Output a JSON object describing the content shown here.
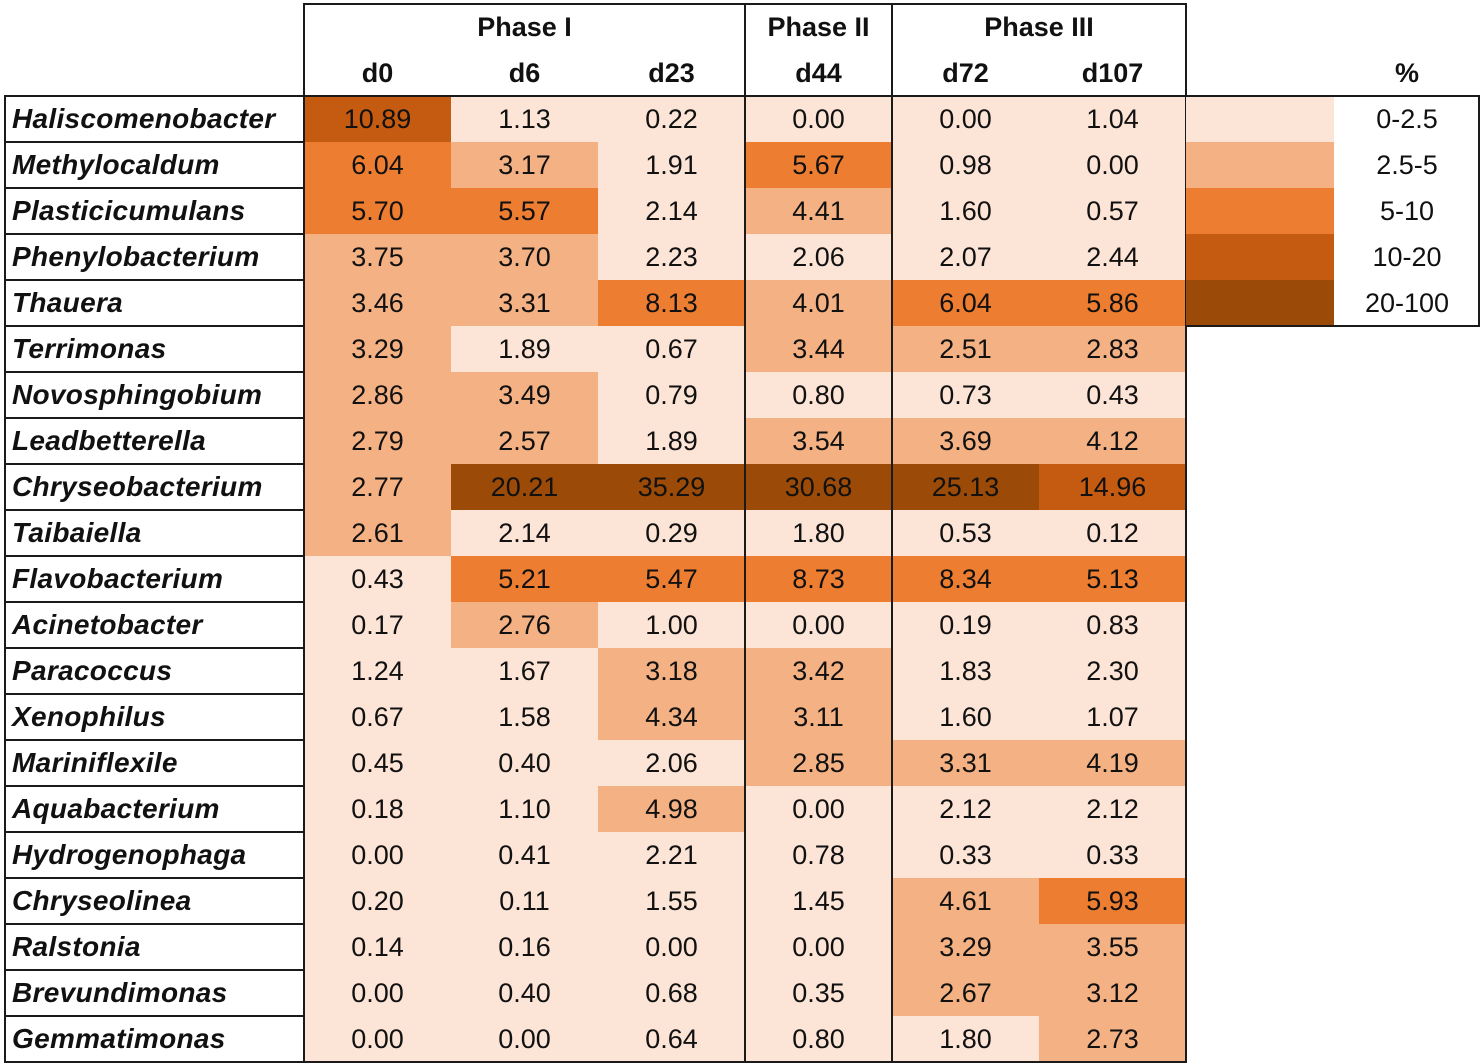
{
  "chart_data": {
    "type": "heatmap",
    "phases": [
      {
        "label": "Phase I",
        "columns": [
          "d0",
          "d6",
          "d23"
        ]
      },
      {
        "label": "Phase II",
        "columns": [
          "d44"
        ]
      },
      {
        "label": "Phase III",
        "columns": [
          "d72",
          "d107"
        ]
      }
    ],
    "columns": [
      "d0",
      "d6",
      "d23",
      "d44",
      "d72",
      "d107"
    ],
    "rows": [
      {
        "name": "Haliscomenobacter",
        "values": [
          "10.89",
          "1.13",
          "0.22",
          "0.00",
          "0.00",
          "1.04"
        ]
      },
      {
        "name": "Methylocaldum",
        "values": [
          "6.04",
          "3.17",
          "1.91",
          "5.67",
          "0.98",
          "0.00"
        ]
      },
      {
        "name": "Plasticicumulans",
        "values": [
          "5.70",
          "5.57",
          "2.14",
          "4.41",
          "1.60",
          "0.57"
        ]
      },
      {
        "name": "Phenylobacterium",
        "values": [
          "3.75",
          "3.70",
          "2.23",
          "2.06",
          "2.07",
          "2.44"
        ]
      },
      {
        "name": "Thauera",
        "values": [
          "3.46",
          "3.31",
          "8.13",
          "4.01",
          "6.04",
          "5.86"
        ]
      },
      {
        "name": "Terrimonas",
        "values": [
          "3.29",
          "1.89",
          "0.67",
          "3.44",
          "2.51",
          "2.83"
        ]
      },
      {
        "name": "Novosphingobium",
        "values": [
          "2.86",
          "3.49",
          "0.79",
          "0.80",
          "0.73",
          "0.43"
        ]
      },
      {
        "name": "Leadbetterella",
        "values": [
          "2.79",
          "2.57",
          "1.89",
          "3.54",
          "3.69",
          "4.12"
        ]
      },
      {
        "name": "Chryseobacterium",
        "values": [
          "2.77",
          "20.21",
          "35.29",
          "30.68",
          "25.13",
          "14.96"
        ]
      },
      {
        "name": "Taibaiella",
        "values": [
          "2.61",
          "2.14",
          "0.29",
          "1.80",
          "0.53",
          "0.12"
        ]
      },
      {
        "name": "Flavobacterium",
        "values": [
          "0.43",
          "5.21",
          "5.47",
          "8.73",
          "8.34",
          "5.13"
        ]
      },
      {
        "name": "Acinetobacter",
        "values": [
          "0.17",
          "2.76",
          "1.00",
          "0.00",
          "0.19",
          "0.83"
        ]
      },
      {
        "name": "Paracoccus",
        "values": [
          "1.24",
          "1.67",
          "3.18",
          "3.42",
          "1.83",
          "2.30"
        ]
      },
      {
        "name": "Xenophilus",
        "values": [
          "0.67",
          "1.58",
          "4.34",
          "3.11",
          "1.60",
          "1.07"
        ]
      },
      {
        "name": "Mariniflexile",
        "values": [
          "0.45",
          "0.40",
          "2.06",
          "2.85",
          "3.31",
          "4.19"
        ]
      },
      {
        "name": "Aquabacterium",
        "values": [
          "0.18",
          "1.10",
          "4.98",
          "0.00",
          "2.12",
          "2.12"
        ]
      },
      {
        "name": "Hydrogenophaga",
        "values": [
          "0.00",
          "0.41",
          "2.21",
          "0.78",
          "0.33",
          "0.33"
        ]
      },
      {
        "name": "Chryseolinea",
        "values": [
          "0.20",
          "0.11",
          "1.55",
          "1.45",
          "4.61",
          "5.93"
        ]
      },
      {
        "name": "Ralstonia",
        "values": [
          "0.14",
          "0.16",
          "0.00",
          "0.00",
          "3.29",
          "3.55"
        ]
      },
      {
        "name": "Brevundimonas",
        "values": [
          "0.00",
          "0.40",
          "0.68",
          "0.35",
          "2.67",
          "3.12"
        ]
      },
      {
        "name": "Gemmatimonas",
        "values": [
          "0.00",
          "0.00",
          "0.64",
          "0.80",
          "1.80",
          "2.73"
        ]
      }
    ],
    "legend": {
      "title": "%",
      "bins": [
        {
          "label": "0-2.5",
          "min": 0,
          "max": 2.5,
          "color": "#fce4d6"
        },
        {
          "label": "2.5-5",
          "min": 2.5,
          "max": 5,
          "color": "#f4b183"
        },
        {
          "label": "5-10",
          "min": 5,
          "max": 10,
          "color": "#ed7d31"
        },
        {
          "label": "10-20",
          "min": 10,
          "max": 20,
          "color": "#c55a11"
        },
        {
          "label": "20-100",
          "min": 20,
          "max": 100,
          "color": "#9b4a07"
        }
      ]
    },
    "color_overrides": [
      {
        "row": "Methylocaldum",
        "column": "d44",
        "color": "#ed7d31"
      }
    ]
  }
}
